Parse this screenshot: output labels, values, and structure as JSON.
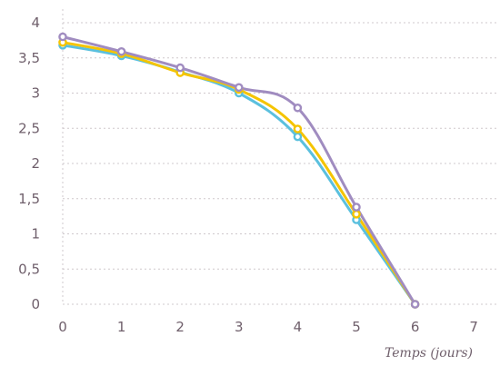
{
  "chart_data": {
    "type": "line",
    "title": "",
    "xlabel": "Temps (jours)",
    "ylabel": "",
    "xlim": [
      0,
      7
    ],
    "ylim": [
      0,
      4
    ],
    "x_ticks": [
      "0",
      "1",
      "2",
      "3",
      "4",
      "5",
      "6",
      "7"
    ],
    "y_ticks": [
      "0",
      "0,5",
      "1",
      "1,5",
      "2",
      "2,5",
      "3",
      "3,5",
      "4"
    ],
    "grid": "horizontal dotted",
    "legend": "none",
    "x": [
      0,
      1,
      2,
      3,
      4,
      5,
      6
    ],
    "series": [
      {
        "color": "#5bc0de",
        "values": [
          3.68,
          3.53,
          3.3,
          3.0,
          2.38,
          1.2,
          0
        ]
      },
      {
        "color": "#f5c400",
        "values": [
          3.72,
          3.56,
          3.29,
          3.05,
          2.49,
          1.28,
          0
        ]
      },
      {
        "color": "#a08cc0",
        "values": [
          3.8,
          3.59,
          3.36,
          3.08,
          2.79,
          1.38,
          0
        ]
      }
    ]
  }
}
